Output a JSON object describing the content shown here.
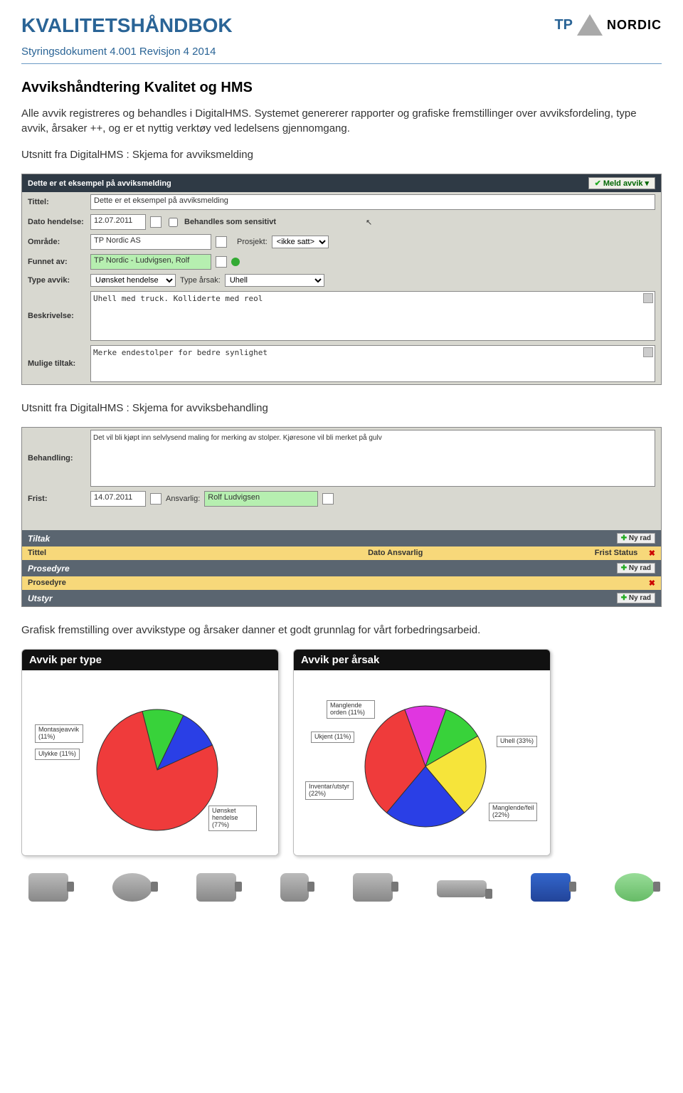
{
  "header": {
    "title": "KVALITETSHÅNDBOK",
    "subtitle": "Styringsdokument 4.001 Revisjon 4   2014",
    "logo_tp": "TP",
    "logo_text": "NORDIC"
  },
  "section_title": "Avvikshåndtering Kvalitet og HMS",
  "para1": "Alle avvik registreres og behandles i DigitalHMS. Systemet genererer rapporter og grafiske fremstillinger over avviksfordeling, type avvik, årsaker ++, og er et nyttig verktøy ved ledelsens gjennomgang.",
  "caption1": "Utsnitt fra DigitalHMS : Skjema for avviksmelding",
  "form1": {
    "titlebar": "Dette er et eksempel på avviksmelding",
    "meld_avvik": "Meld avvik",
    "labels": {
      "tittel": "Tittel:",
      "dato": "Dato hendelse:",
      "behandles": "Behandles som sensitivt",
      "omrade": "Område:",
      "prosjekt": "Prosjekt:",
      "funnet": "Funnet av:",
      "type_avvik": "Type avvik:",
      "type_arsak": "Type årsak:",
      "beskrivelse": "Beskrivelse:",
      "tiltak": "Mulige tiltak:"
    },
    "values": {
      "tittel": "Dette er et eksempel på avviksmelding",
      "dato": "12.07.2011",
      "omrade": "TP Nordic AS",
      "prosjekt": "<ikke satt>",
      "funnet": "TP Nordic - Ludvigsen, Rolf",
      "type_avvik": "Uønsket hendelse",
      "type_arsak": "Uhell",
      "beskrivelse": "Uhell med truck. Kolliderte med reol",
      "tiltak": "Merke endestolper for bedre synlighet"
    }
  },
  "caption2": "Utsnitt fra DigitalHMS : Skjema for avviksbehandling",
  "form2": {
    "labels": {
      "behandling": "Behandling:",
      "frist": "Frist:",
      "ansvarlig": "Ansvarlig:"
    },
    "values": {
      "behandling": "Det vil bli kjøpt inn selvlysend maling for merking av stolper. Kjøresone vil bli merket på gulv",
      "frist": "14.07.2011",
      "ansvarlig": "Rolf Ludvigsen"
    },
    "tiltak_bar": "Tiltak",
    "nyrad": "Ny rad",
    "table_cols": {
      "c1": "Tittel",
      "c2": "Dato  Ansvarlig",
      "c3": "Frist  Status"
    },
    "prosedyre_bar": "Prosedyre",
    "prosedyre_row": "Prosedyre",
    "utstyr_bar": "Utstyr"
  },
  "para2": "Grafisk fremstilling over avvikstype og årsaker danner et godt grunnlag for vårt forbedringsarbeid.",
  "chart1": {
    "title": "Avvik per type",
    "type": "pie",
    "slices": [
      {
        "label": "Montasjeavvik (11%)",
        "value": 11,
        "color": "#38d23a"
      },
      {
        "label": "Ulykke (11%)",
        "value": 11,
        "color": "#2a3fe6"
      },
      {
        "label": "Uønsket hendelse (77%)",
        "value": 77,
        "color": "#ef3b3b"
      }
    ],
    "background": "#ffffff",
    "stroke": "#333333"
  },
  "chart2": {
    "title": "Avvik per årsak",
    "type": "pie",
    "slices": [
      {
        "label": "Manglende orden (11%)",
        "value": 11,
        "color": "#e036e0"
      },
      {
        "label": "Ukjent (11%)",
        "value": 11,
        "color": "#38d23a"
      },
      {
        "label": "Inventar/utstyr (22%)",
        "value": 22,
        "color": "#f6e43a"
      },
      {
        "label": "Manglende/feil (22%)",
        "value": 22,
        "color": "#2a3fe6"
      },
      {
        "label": "Uhell (33%)",
        "value": 33,
        "color": "#ef3b3b"
      }
    ],
    "background": "#ffffff",
    "stroke": "#333333"
  }
}
